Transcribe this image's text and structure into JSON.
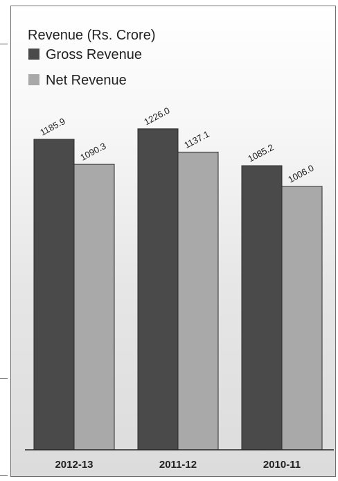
{
  "chart_data": {
    "type": "bar",
    "title": "Revenue (Rs. Crore)",
    "categories": [
      "2012-13",
      "2011-12",
      "2010-11"
    ],
    "series": [
      {
        "name": "Gross Revenue",
        "values": [
          1185.9,
          1226.0,
          1085.2
        ],
        "color": "#4a4a4a"
      },
      {
        "name": "Net Revenue",
        "values": [
          1090.3,
          1137.1,
          1006.0
        ],
        "color": "#a9a9a9"
      }
    ],
    "data_labels": [
      [
        "1185.9",
        "1226.0",
        "1085.2"
      ],
      [
        "1090.3",
        "1137.1",
        "1006.0"
      ]
    ],
    "ylim": [
      0,
      1350
    ],
    "grid": false,
    "legend_position": "top-left"
  }
}
